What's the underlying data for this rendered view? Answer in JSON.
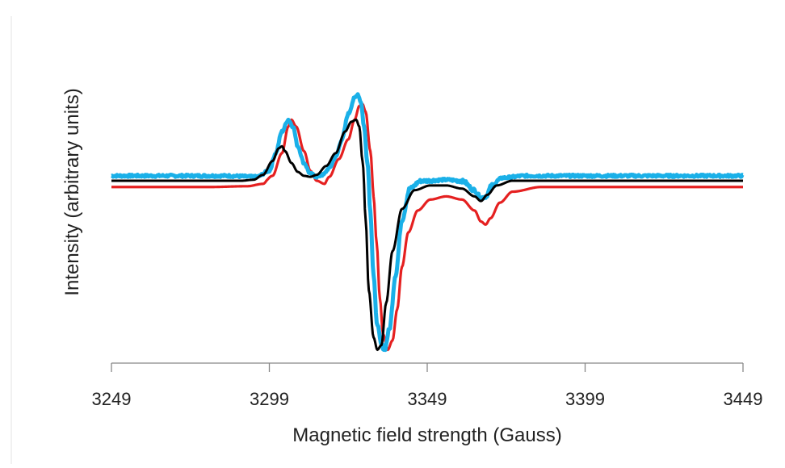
{
  "chart_data": {
    "type": "line",
    "title": "",
    "xlabel": "Magnetic field strength (Gauss)",
    "ylabel": "Intensity (arbitrary units)",
    "xlim": [
      3249,
      3449
    ],
    "ylim": [
      -1,
      1
    ],
    "x_ticks": [
      3249,
      3299,
      3349,
      3399,
      3449
    ],
    "x_tick_labels": [
      "3249",
      "3299",
      "3349",
      "3399",
      "3449"
    ],
    "y_ticks_shown": false,
    "grid": false,
    "legend": "none",
    "series": [
      {
        "color": "#e52020",
        "noise": 0,
        "points": [
          [
            3249,
            -0.04
          ],
          [
            3280,
            -0.04
          ],
          [
            3292,
            -0.035
          ],
          [
            3297,
            -0.02
          ],
          [
            3300,
            0.05
          ],
          [
            3303,
            0.28
          ],
          [
            3305,
            0.55
          ],
          [
            3306,
            0.62
          ],
          [
            3307.5,
            0.55
          ],
          [
            3310,
            0.3
          ],
          [
            3312,
            0.1
          ],
          [
            3314,
            0.0
          ],
          [
            3316.5,
            -0.02
          ],
          [
            3318,
            0.04
          ],
          [
            3321,
            0.22
          ],
          [
            3324,
            0.42
          ],
          [
            3326,
            0.62
          ],
          [
            3327.5,
            0.76
          ],
          [
            3328.5,
            0.78
          ],
          [
            3329.5,
            0.7
          ],
          [
            3331,
            0.3
          ],
          [
            3332,
            -0.1
          ],
          [
            3333,
            -0.4
          ],
          [
            3334,
            -0.75
          ],
          [
            3335,
            -0.98
          ],
          [
            3336.5,
            -1.08
          ],
          [
            3338,
            -1.02
          ],
          [
            3339.5,
            -0.82
          ],
          [
            3341,
            -0.55
          ],
          [
            3343,
            -0.33
          ],
          [
            3346,
            -0.19
          ],
          [
            3350,
            -0.12
          ],
          [
            3355,
            -0.1
          ],
          [
            3360,
            -0.12
          ],
          [
            3364,
            -0.19
          ],
          [
            3366,
            -0.26
          ],
          [
            3367.5,
            -0.28
          ],
          [
            3369,
            -0.24
          ],
          [
            3372,
            -0.14
          ],
          [
            3376,
            -0.07
          ],
          [
            3385,
            -0.04
          ],
          [
            3400,
            -0.04
          ],
          [
            3449,
            -0.04
          ]
        ]
      },
      {
        "color": "#1ab0e8",
        "noise": 0.012,
        "points": [
          [
            3249,
            0.05
          ],
          [
            3285,
            0.05
          ],
          [
            3295,
            0.04
          ],
          [
            3299,
            0.1
          ],
          [
            3301,
            0.28
          ],
          [
            3303,
            0.5
          ],
          [
            3305,
            0.62
          ],
          [
            3306.5,
            0.55
          ],
          [
            3308,
            0.35
          ],
          [
            3310,
            0.18
          ],
          [
            3312,
            0.07
          ],
          [
            3314,
            0.04
          ],
          [
            3316,
            0.06
          ],
          [
            3318,
            0.13
          ],
          [
            3320,
            0.24
          ],
          [
            3322,
            0.42
          ],
          [
            3324,
            0.68
          ],
          [
            3326,
            0.84
          ],
          [
            3327,
            0.88
          ],
          [
            3328,
            0.8
          ],
          [
            3329,
            0.55
          ],
          [
            3330,
            0.2
          ],
          [
            3331,
            -0.2
          ],
          [
            3332,
            -0.6
          ],
          [
            3333,
            -0.9
          ],
          [
            3334.5,
            -1.05
          ],
          [
            3335.5,
            -1.08
          ],
          [
            3337,
            -0.95
          ],
          [
            3339,
            -0.6
          ],
          [
            3341,
            -0.25
          ],
          [
            3343.5,
            -0.05
          ],
          [
            3347,
            0.0
          ],
          [
            3355,
            0.01
          ],
          [
            3360,
            0.0
          ],
          [
            3364,
            -0.06
          ],
          [
            3366,
            -0.11
          ],
          [
            3367.5,
            -0.1
          ],
          [
            3369.5,
            -0.03
          ],
          [
            3373,
            0.03
          ],
          [
            3380,
            0.05
          ],
          [
            3449,
            0.05
          ]
        ]
      },
      {
        "color": "#000000",
        "noise": 0,
        "points": [
          [
            3249,
            0.0
          ],
          [
            3290,
            0.0
          ],
          [
            3294,
            0.01
          ],
          [
            3297,
            0.06
          ],
          [
            3300,
            0.2
          ],
          [
            3302,
            0.33
          ],
          [
            3303,
            0.35
          ],
          [
            3304,
            0.3
          ],
          [
            3306,
            0.18
          ],
          [
            3308,
            0.09
          ],
          [
            3310,
            0.05
          ],
          [
            3312,
            0.04
          ],
          [
            3314,
            0.06
          ],
          [
            3317,
            0.15
          ],
          [
            3320,
            0.28
          ],
          [
            3323,
            0.5
          ],
          [
            3325,
            0.6
          ],
          [
            3326.5,
            0.62
          ],
          [
            3327.5,
            0.55
          ],
          [
            3328.5,
            0.2
          ],
          [
            3329.5,
            -0.25
          ],
          [
            3330.5,
            -0.7
          ],
          [
            3332,
            -1.0
          ],
          [
            3333.2,
            -1.08
          ],
          [
            3334.5,
            -1.05
          ],
          [
            3336,
            -0.78
          ],
          [
            3338,
            -0.45
          ],
          [
            3341,
            -0.18
          ],
          [
            3345,
            -0.06
          ],
          [
            3350,
            -0.03
          ],
          [
            3355,
            -0.03
          ],
          [
            3360,
            -0.05
          ],
          [
            3364,
            -0.1
          ],
          [
            3366,
            -0.13
          ],
          [
            3368,
            -0.09
          ],
          [
            3371,
            -0.03
          ],
          [
            3376,
            0.0
          ],
          [
            3449,
            0.0
          ]
        ]
      }
    ]
  }
}
